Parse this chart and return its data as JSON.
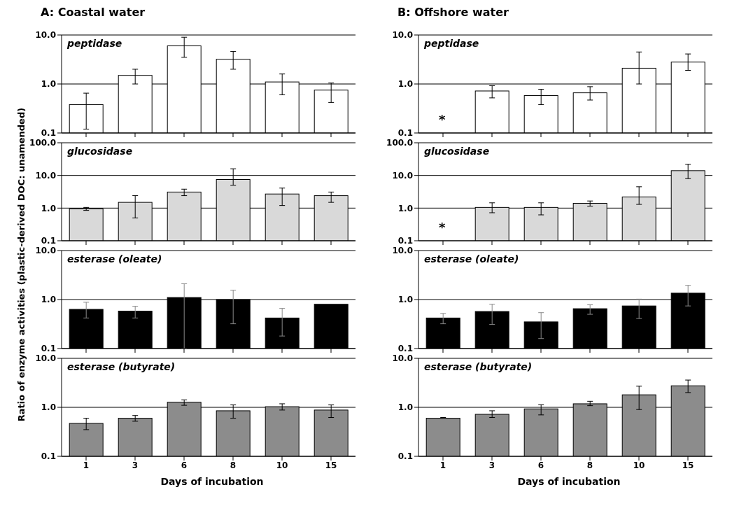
{
  "chart_data": [
    {
      "type": "bar",
      "title": "A: Coastal water",
      "ylabel": "Ratio of enzyme activities (plastic-derived DOC: unamended)",
      "categories": [
        "1",
        "3",
        "6",
        "8",
        "10",
        "15"
      ],
      "values": [
        0.38,
        1.5,
        6,
        3.2,
        1.1,
        0.75
      ],
      "color": "#ffffff",
      "errors": [
        [
          0.12,
          0.65
        ],
        [
          1.0,
          2.0
        ],
        [
          3.5,
          9
        ],
        [
          2.0,
          4.6
        ],
        [
          0.6,
          1.6
        ],
        [
          0.42,
          1.05
        ]
      ],
      "log": true,
      "ylim": [
        0.1,
        10
      ],
      "yticks": [
        {
          "value": 0.1,
          "label": "0.1"
        },
        {
          "value": 1,
          "label": "1.0"
        },
        {
          "value": 10,
          "label": "10.0"
        }
      ],
      "grid": "y",
      "tick_labels": "y",
      "annotations": [
        "peptidase"
      ]
    },
    {
      "type": "bar",
      "categories": [
        "1",
        "3",
        "6",
        "8",
        "10",
        "15"
      ],
      "values": [
        0.95,
        1.5,
        3.1,
        7.5,
        2.7,
        2.4
      ],
      "color": "#d9d9d9",
      "errors": [
        [
          0.85,
          1.05
        ],
        [
          0.5,
          2.4
        ],
        [
          2.4,
          3.8
        ],
        [
          5,
          16
        ],
        [
          1.2,
          4.1
        ],
        [
          1.5,
          3.1
        ]
      ],
      "log": true,
      "ylim": [
        0.1,
        100
      ],
      "yticks": [
        {
          "value": 0.1,
          "label": "0.1"
        },
        {
          "value": 1,
          "label": "1.0"
        },
        {
          "value": 10,
          "label": "10.0"
        },
        {
          "value": 100,
          "label": "100.0"
        }
      ],
      "grid": "y",
      "tick_labels": "y",
      "annotations": [
        "glucosidase"
      ]
    },
    {
      "type": "bar",
      "categories": [
        "1",
        "3",
        "6",
        "8",
        "10",
        "15"
      ],
      "values": [
        0.63,
        0.58,
        1.1,
        1.0,
        0.42,
        0.8
      ],
      "color": "#000000",
      "errors": [
        [
          0.42,
          0.88
        ],
        [
          0.42,
          0.73
        ],
        [
          0.1,
          2.1
        ],
        [
          0.32,
          1.55
        ],
        [
          0.18,
          0.66
        ],
        null
      ],
      "log": true,
      "ylim": [
        0.1,
        10
      ],
      "yticks": [
        {
          "value": 0.1,
          "label": "0.1"
        },
        {
          "value": 1,
          "label": "1.0"
        },
        {
          "value": 10,
          "label": "10.0"
        }
      ],
      "grid": "y",
      "tick_labels": "y",
      "annotations": [
        "esterase (oleate)"
      ]
    },
    {
      "type": "bar",
      "xlabel": "Days of incubation",
      "categories": [
        "1",
        "3",
        "6",
        "8",
        "10",
        "15"
      ],
      "values": [
        0.47,
        0.6,
        1.27,
        0.85,
        1.03,
        0.88
      ],
      "color": "#8c8c8c",
      "errors": [
        [
          0.35,
          0.6
        ],
        [
          0.52,
          0.68
        ],
        [
          1.1,
          1.42
        ],
        [
          0.6,
          1.12
        ],
        [
          0.88,
          1.18
        ],
        [
          0.62,
          1.12
        ]
      ],
      "log": true,
      "ylim": [
        0.1,
        10
      ],
      "yticks": [
        {
          "value": 0.1,
          "label": "0.1"
        },
        {
          "value": 1,
          "label": "1.0"
        },
        {
          "value": 10,
          "label": "10.0"
        }
      ],
      "grid": "y",
      "annotations": [
        "esterase (butyrate)"
      ]
    },
    {
      "type": "bar",
      "title": "B: Offshore water",
      "categories": [
        "1",
        "3",
        "6",
        "8",
        "10",
        "15"
      ],
      "values": [
        null,
        0.72,
        0.58,
        0.66,
        2.1,
        2.8
      ],
      "color": "#ffffff",
      "errors": [
        null,
        [
          0.52,
          0.92
        ],
        [
          0.38,
          0.78
        ],
        [
          0.47,
          0.88
        ],
        [
          1.0,
          4.5
        ],
        [
          1.9,
          4.1
        ]
      ],
      "log": true,
      "ylim": [
        0.1,
        10
      ],
      "yticks": [
        {
          "value": 0.1,
          "label": "0.1"
        },
        {
          "value": 1,
          "label": "1.0"
        },
        {
          "value": 10,
          "label": "10.0"
        }
      ],
      "grid": "y",
      "tick_labels": "y",
      "annotations": [
        "peptidase",
        "*"
      ]
    },
    {
      "type": "bar",
      "categories": [
        "1",
        "3",
        "6",
        "8",
        "10",
        "15"
      ],
      "values": [
        null,
        1.05,
        1.05,
        1.4,
        2.2,
        14
      ],
      "color": "#d9d9d9",
      "errors": [
        null,
        [
          0.72,
          1.45
        ],
        [
          0.62,
          1.45
        ],
        [
          1.15,
          1.65
        ],
        [
          1.3,
          4.5
        ],
        [
          8,
          22
        ]
      ],
      "log": true,
      "ylim": [
        0.1,
        100
      ],
      "yticks": [
        {
          "value": 0.1,
          "label": "0.1"
        },
        {
          "value": 1,
          "label": "1.0"
        },
        {
          "value": 10,
          "label": "10.0"
        },
        {
          "value": 100,
          "label": "100.0"
        }
      ],
      "grid": "y",
      "tick_labels": "y",
      "annotations": [
        "glucosidase",
        "*"
      ]
    },
    {
      "type": "bar",
      "categories": [
        "1",
        "3",
        "6",
        "8",
        "10",
        "15"
      ],
      "values": [
        0.42,
        0.57,
        0.35,
        0.65,
        0.74,
        1.35
      ],
      "color": "#000000",
      "errors": [
        [
          0.32,
          0.52
        ],
        [
          0.31,
          0.8
        ],
        [
          0.16,
          0.54
        ],
        [
          0.5,
          0.78
        ],
        [
          0.41,
          1.02
        ],
        [
          0.74,
          1.95
        ]
      ],
      "log": true,
      "ylim": [
        0.1,
        10
      ],
      "yticks": [
        {
          "value": 0.1,
          "label": "0.1"
        },
        {
          "value": 1,
          "label": "1.0"
        },
        {
          "value": 10,
          "label": "10.0"
        }
      ],
      "grid": "y",
      "tick_labels": "y",
      "annotations": [
        "esterase (oleate)"
      ]
    },
    {
      "type": "bar",
      "xlabel": "Days of incubation",
      "categories": [
        "1",
        "3",
        "6",
        "8",
        "10",
        "15"
      ],
      "values": [
        0.6,
        0.72,
        0.93,
        1.18,
        1.8,
        2.75
      ],
      "color": "#8c8c8c",
      "errors": [
        [
          0.6,
          0.62
        ],
        [
          0.62,
          0.85
        ],
        [
          0.7,
          1.13
        ],
        [
          1.08,
          1.33
        ],
        [
          0.9,
          2.7
        ],
        [
          2.0,
          3.6
        ]
      ],
      "log": true,
      "ylim": [
        0.1,
        10
      ],
      "yticks": [
        {
          "value": 0.1,
          "label": "0.1"
        },
        {
          "value": 1,
          "label": "1.0"
        },
        {
          "value": 10,
          "label": "10.0"
        }
      ],
      "grid": "y",
      "annotations": [
        "esterase (butyrate)"
      ]
    }
  ]
}
